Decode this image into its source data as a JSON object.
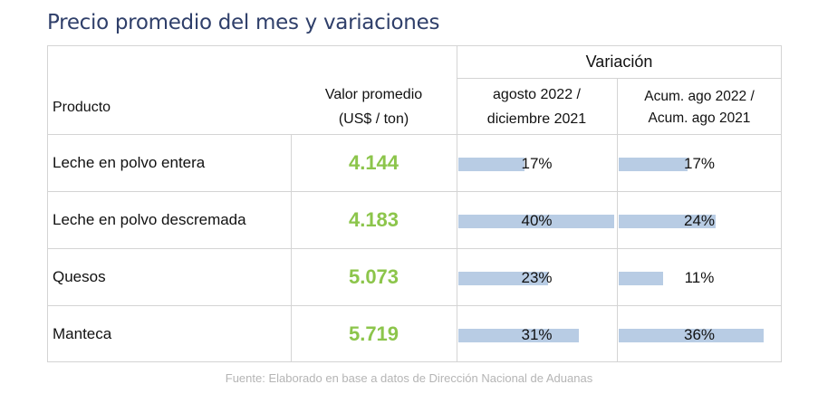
{
  "title": "Precio promedio del mes y variaciones",
  "header": {
    "variacion": "Variación",
    "producto": "Producto",
    "valor_line1": "Valor promedio",
    "valor_line2": "(US$ / ton)",
    "col3_line1": "agosto 2022 /",
    "col3_line2": "diciembre 2021",
    "col4_line1": "Acum. ago 2022 /",
    "col4_line2": "Acum. ago 2021"
  },
  "footer": "Fuente: Elaborado en base a datos de Dirección Nacional de Aduanas",
  "colors": {
    "value": "#8cc54b",
    "bar": "#b8cce4",
    "title": "#2f3f6a"
  },
  "chart_data": {
    "type": "table",
    "columns": [
      "Producto",
      "Valor promedio (US$ / ton)",
      "agosto 2022 / diciembre 2021",
      "Acum. ago 2022 / Acum. ago 2021"
    ],
    "rows": [
      {
        "producto": "Leche en polvo entera",
        "valor": "4.144",
        "var_mes": 17,
        "var_acum": 17
      },
      {
        "producto": "Leche en polvo descremada",
        "valor": "4.183",
        "var_mes": 40,
        "var_acum": 24
      },
      {
        "producto": "Quesos",
        "valor": "5.073",
        "var_mes": 23,
        "var_acum": 11
      },
      {
        "producto": "Manteca",
        "valor": "5.719",
        "var_mes": 31,
        "var_acum": 36
      }
    ]
  }
}
